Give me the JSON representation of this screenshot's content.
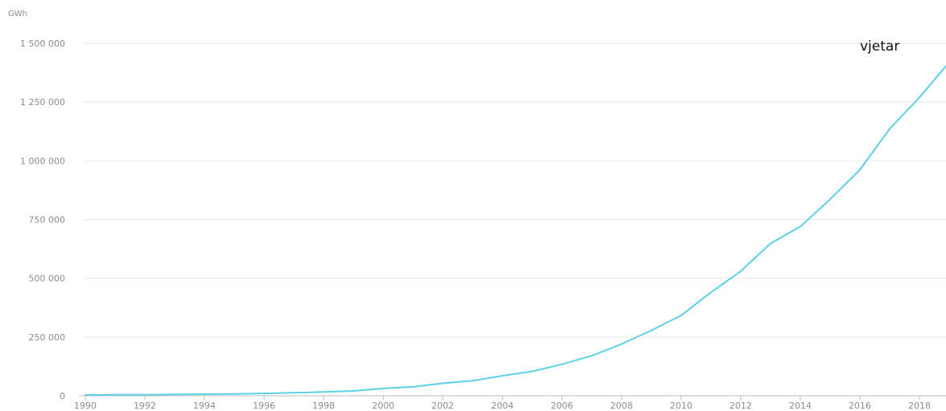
{
  "chart_data": {
    "type": "line",
    "unit_label": "GWh",
    "x_ticks": [
      "1990",
      "1992",
      "1994",
      "1996",
      "1998",
      "2000",
      "2002",
      "2004",
      "2006",
      "2008",
      "2010",
      "2012",
      "2014",
      "2016",
      "2018"
    ],
    "y_ticks": [
      {
        "value": 0,
        "label": "0"
      },
      {
        "value": 250000,
        "label": "250 000"
      },
      {
        "value": 500000,
        "label": "500 000"
      },
      {
        "value": 750000,
        "label": "750 000"
      },
      {
        "value": 1000000,
        "label": "1 000 000"
      },
      {
        "value": 1250000,
        "label": "1 250 000"
      },
      {
        "value": 1500000,
        "label": "1 500 000"
      }
    ],
    "xlim": [
      1990,
      2019
    ],
    "ylim": [
      0,
      1500000
    ],
    "grid": "horizontal",
    "series": [
      {
        "name": "vjetar",
        "color": "#5ed0e6",
        "x": [
          1990,
          1991,
          1992,
          1993,
          1994,
          1995,
          1996,
          1997,
          1998,
          1999,
          2000,
          2001,
          2002,
          2003,
          2004,
          2005,
          2006,
          2007,
          2008,
          2009,
          2010,
          2011,
          2012,
          2013,
          2014,
          2015,
          2016,
          2017,
          2018,
          2019
        ],
        "values": [
          3500,
          4000,
          4500,
          5500,
          7000,
          8000,
          10000,
          12500,
          16000,
          20500,
          31000,
          38000,
          53000,
          64000,
          85000,
          104000,
          134000,
          170000,
          220000,
          278000,
          342000,
          440000,
          530000,
          648000,
          720000,
          836000,
          962000,
          1136000,
          1270000,
          1420000
        ]
      }
    ]
  }
}
